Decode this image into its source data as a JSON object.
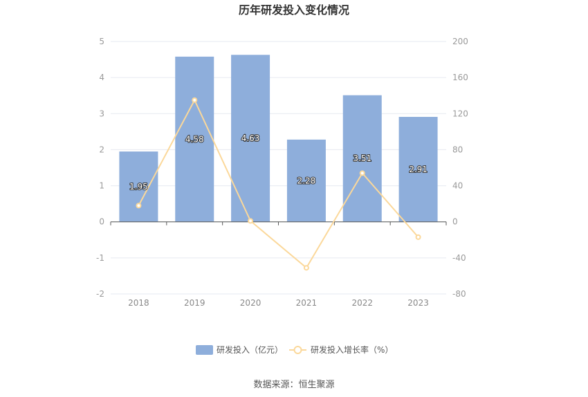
{
  "chart_data": {
    "type": "bar",
    "title": "历年研发投入变化情况",
    "categories": [
      "2018",
      "2019",
      "2020",
      "2021",
      "2022",
      "2023"
    ],
    "series": [
      {
        "name": "研发投入（亿元）",
        "type": "bar",
        "axis": "left",
        "values": [
          1.95,
          4.58,
          4.63,
          2.28,
          3.51,
          2.91
        ],
        "labels": [
          "1.95",
          "4.58",
          "4.63",
          "2.28",
          "3.51",
          "2.91"
        ]
      },
      {
        "name": "研发投入增长率（%）",
        "type": "line",
        "axis": "right",
        "values": [
          18,
          135,
          1,
          -51,
          54,
          -17
        ]
      }
    ],
    "y_left": {
      "min": -2,
      "max": 5,
      "ticks": [
        "5",
        "4",
        "3",
        "2",
        "1",
        "0",
        "-1",
        "-2"
      ]
    },
    "y_right": {
      "min": -80,
      "max": 200,
      "ticks": [
        "200",
        "160",
        "120",
        "80",
        "40",
        "0",
        "-40",
        "-80"
      ]
    },
    "grid": true,
    "legend_position": "bottom",
    "colors": {
      "bar": "#8eaedb",
      "line": "#fbd89a",
      "grid": "#e6e9f0",
      "axis": "#555555"
    }
  },
  "source": "数据来源：恒生聚源"
}
